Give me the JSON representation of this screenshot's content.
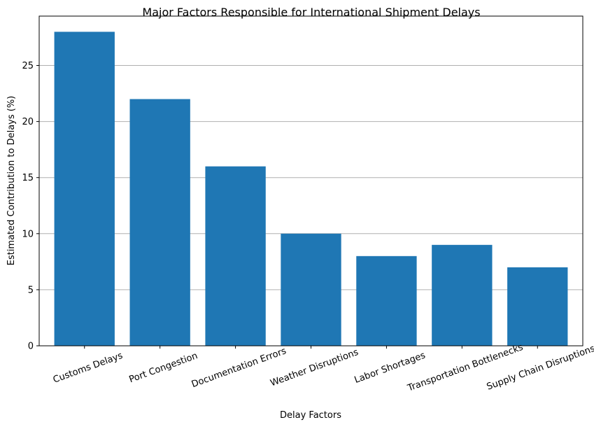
{
  "chart_data": {
    "type": "bar",
    "title": "Major Factors Responsible for International Shipment Delays",
    "xlabel": "Delay Factors",
    "ylabel": "Estimated Contribution to Delays (%)",
    "categories": [
      "Customs Delays",
      "Port Congestion",
      "Documentation Errors",
      "Weather Disruptions",
      "Labor Shortages",
      "Transportation Bottlenecks",
      "Supply Chain Disruptions"
    ],
    "values": [
      28,
      22,
      16,
      10,
      8,
      9,
      7
    ],
    "ylim": [
      0,
      29.4
    ],
    "yticks": [
      0,
      5,
      10,
      15,
      20,
      25
    ],
    "grid": "y",
    "bar_color": "#1f77b4",
    "grid_color": "#b0b0b0"
  }
}
